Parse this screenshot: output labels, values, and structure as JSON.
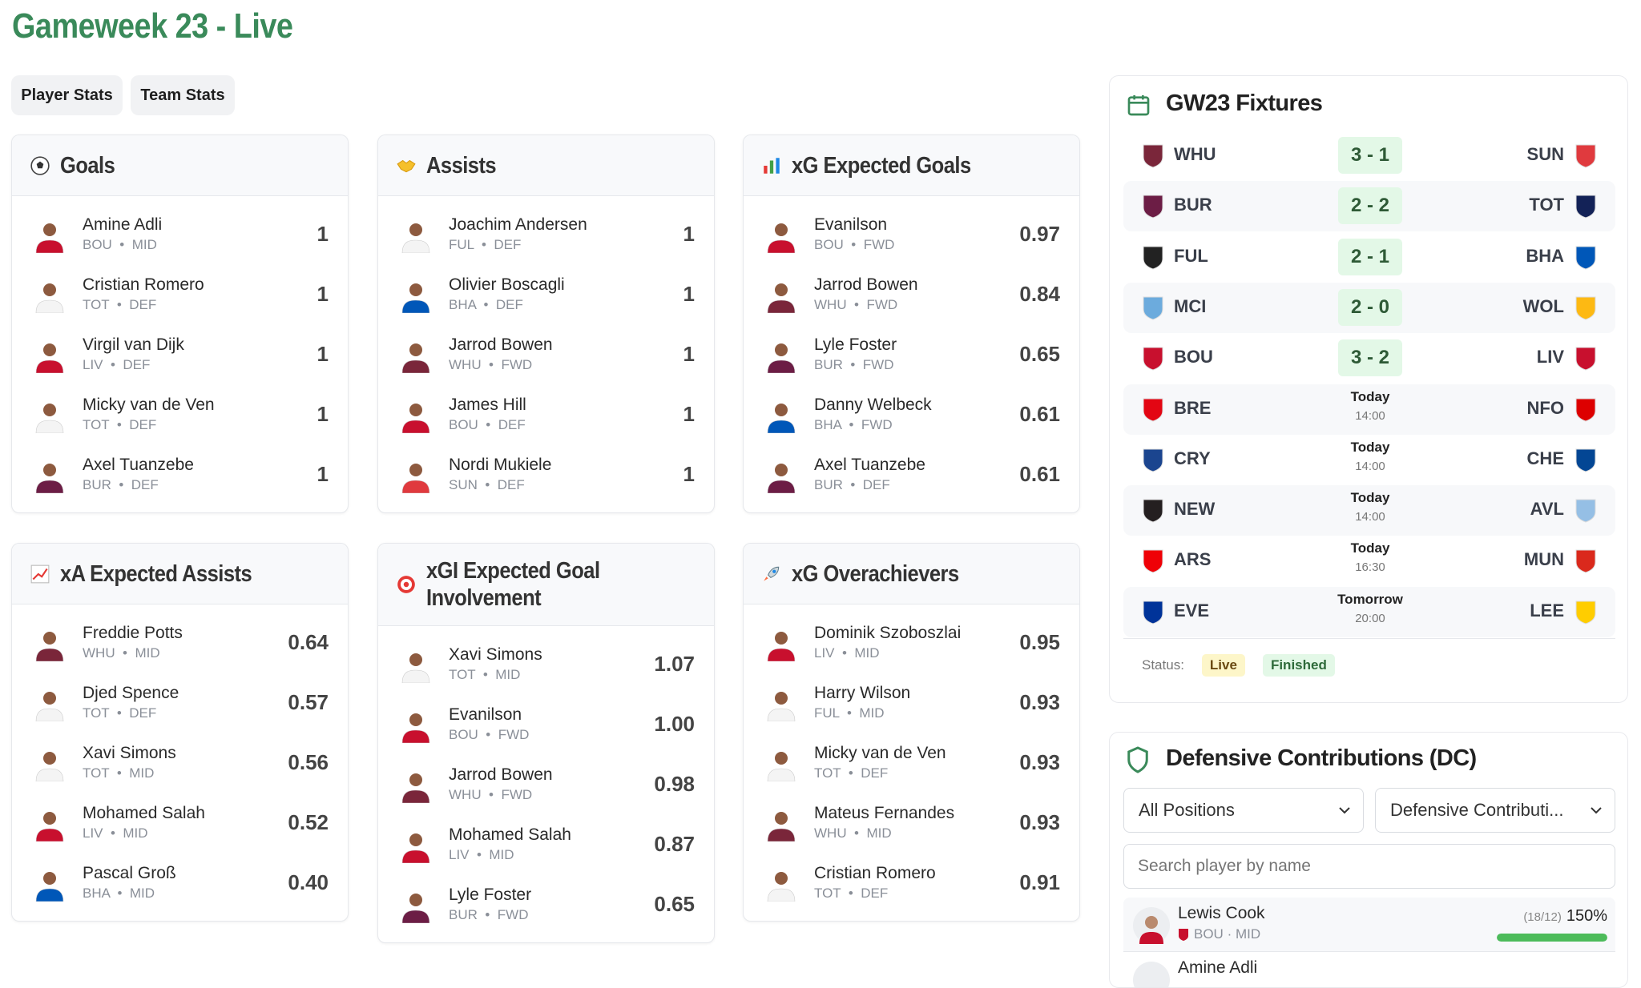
{
  "page": {
    "title": "Gameweek 23 - Live"
  },
  "tabs": [
    {
      "label": "Player Stats"
    },
    {
      "label": "Team Stats"
    }
  ],
  "team_colors": {
    "BOU": "#c8102e",
    "TOT": "#f4f4f4",
    "LIV": "#c8102e",
    "BUR": "#6c1d45",
    "FUL": "#f4f4f4",
    "BHA": "#0057b8",
    "WHU": "#7a263a",
    "SUN": "#e03a3e"
  },
  "cards": [
    {
      "title": "Goals",
      "icon": "soccer-ball-icon",
      "rows": [
        {
          "name": "Amine Adli",
          "team": "BOU",
          "pos": "MID",
          "value": "1"
        },
        {
          "name": "Cristian Romero",
          "team": "TOT",
          "pos": "DEF",
          "value": "1"
        },
        {
          "name": "Virgil van Dijk",
          "team": "LIV",
          "pos": "DEF",
          "value": "1"
        },
        {
          "name": "Micky van de Ven",
          "team": "TOT",
          "pos": "DEF",
          "value": "1"
        },
        {
          "name": "Axel Tuanzebe",
          "team": "BUR",
          "pos": "DEF",
          "value": "1"
        }
      ]
    },
    {
      "title": "Assists",
      "icon": "handshake-icon",
      "rows": [
        {
          "name": "Joachim Andersen",
          "team": "FUL",
          "pos": "DEF",
          "value": "1"
        },
        {
          "name": "Olivier Boscagli",
          "team": "BHA",
          "pos": "DEF",
          "value": "1"
        },
        {
          "name": "Jarrod Bowen",
          "team": "WHU",
          "pos": "FWD",
          "value": "1"
        },
        {
          "name": "James Hill",
          "team": "BOU",
          "pos": "DEF",
          "value": "1"
        },
        {
          "name": "Nordi Mukiele",
          "team": "SUN",
          "pos": "DEF",
          "value": "1"
        }
      ]
    },
    {
      "title": "xG Expected Goals",
      "icon": "bar-chart-icon",
      "rows": [
        {
          "name": "Evanilson",
          "team": "BOU",
          "pos": "FWD",
          "value": "0.97"
        },
        {
          "name": "Jarrod Bowen",
          "team": "WHU",
          "pos": "FWD",
          "value": "0.84"
        },
        {
          "name": "Lyle Foster",
          "team": "BUR",
          "pos": "FWD",
          "value": "0.65"
        },
        {
          "name": "Danny Welbeck",
          "team": "BHA",
          "pos": "FWD",
          "value": "0.61"
        },
        {
          "name": "Axel Tuanzebe",
          "team": "BUR",
          "pos": "DEF",
          "value": "0.61"
        }
      ]
    },
    {
      "title": "xA Expected Assists",
      "icon": "trend-chart-icon",
      "rows": [
        {
          "name": "Freddie Potts",
          "team": "WHU",
          "pos": "MID",
          "value": "0.64"
        },
        {
          "name": "Djed Spence",
          "team": "TOT",
          "pos": "DEF",
          "value": "0.57"
        },
        {
          "name": "Xavi Simons",
          "team": "TOT",
          "pos": "MID",
          "value": "0.56"
        },
        {
          "name": "Mohamed Salah",
          "team": "LIV",
          "pos": "MID",
          "value": "0.52"
        },
        {
          "name": "Pascal Groß",
          "team": "BHA",
          "pos": "MID",
          "value": "0.40"
        }
      ]
    },
    {
      "title": "xGI Expected Goal Involvement",
      "icon": "target-icon",
      "rows": [
        {
          "name": "Xavi Simons",
          "team": "TOT",
          "pos": "MID",
          "value": "1.07"
        },
        {
          "name": "Evanilson",
          "team": "BOU",
          "pos": "FWD",
          "value": "1.00"
        },
        {
          "name": "Jarrod Bowen",
          "team": "WHU",
          "pos": "FWD",
          "value": "0.98"
        },
        {
          "name": "Mohamed Salah",
          "team": "LIV",
          "pos": "MID",
          "value": "0.87"
        },
        {
          "name": "Lyle Foster",
          "team": "BUR",
          "pos": "FWD",
          "value": "0.65"
        }
      ]
    },
    {
      "title": "xG Overachievers",
      "icon": "rocket-icon",
      "rows": [
        {
          "name": "Dominik Szoboszlai",
          "team": "LIV",
          "pos": "MID",
          "value": "0.95"
        },
        {
          "name": "Harry Wilson",
          "team": "FUL",
          "pos": "MID",
          "value": "0.93"
        },
        {
          "name": "Micky van de Ven",
          "team": "TOT",
          "pos": "DEF",
          "value": "0.93"
        },
        {
          "name": "Mateus Fernandes",
          "team": "WHU",
          "pos": "MID",
          "value": "0.93"
        },
        {
          "name": "Cristian Romero",
          "team": "TOT",
          "pos": "DEF",
          "value": "0.91"
        }
      ]
    }
  ],
  "fixtures": {
    "title": "GW23 Fixtures",
    "accent": "#3a8a5a",
    "crest_colors": {
      "WHU": "#7a263a",
      "SUN": "#e03a3e",
      "BUR": "#6c1d45",
      "TOT": "#132257",
      "FUL": "#222222",
      "BHA": "#0057b8",
      "MCI": "#6cabdd",
      "WOL": "#fdb913",
      "BOU": "#c8102e",
      "LIV": "#c8102e",
      "BRE": "#e30613",
      "NFO": "#dd0000",
      "CRY": "#1b458f",
      "CHE": "#034694",
      "NEW": "#241f20",
      "AVL": "#95bfe5",
      "ARS": "#ef0107",
      "MUN": "#da291c",
      "EVE": "#003399",
      "LEE": "#ffcd00"
    },
    "matches": [
      {
        "home": "WHU",
        "away": "SUN",
        "score": "3 - 1"
      },
      {
        "home": "BUR",
        "away": "TOT",
        "score": "2 - 2"
      },
      {
        "home": "FUL",
        "away": "BHA",
        "score": "2 - 1"
      },
      {
        "home": "MCI",
        "away": "WOL",
        "score": "2 - 0"
      },
      {
        "home": "BOU",
        "away": "LIV",
        "score": "3 - 2"
      },
      {
        "home": "BRE",
        "away": "NFO",
        "day": "Today",
        "time": "14:00"
      },
      {
        "home": "CRY",
        "away": "CHE",
        "day": "Today",
        "time": "14:00"
      },
      {
        "home": "NEW",
        "away": "AVL",
        "day": "Today",
        "time": "14:00"
      },
      {
        "home": "ARS",
        "away": "MUN",
        "day": "Today",
        "time": "16:30"
      },
      {
        "home": "EVE",
        "away": "LEE",
        "day": "Tomorrow",
        "time": "20:00"
      }
    ],
    "status_label": "Status:",
    "live_label": "Live",
    "finished_label": "Finished",
    "live_color": "#fdf6c9",
    "finished_color": "#e3f8e7"
  },
  "dc": {
    "title": "Defensive Contributions (DC)",
    "position_select": "All Positions",
    "metric_select": "Defensive Contributi...",
    "search_placeholder": "Search player by name",
    "players": [
      {
        "name": "Lewis Cook",
        "team": "BOU",
        "pos": "MID",
        "ratio": "(18/12)",
        "percent": "150%",
        "progress": 100,
        "bar_color": "#4cbb5a"
      },
      {
        "name": "Amine Adli"
      }
    ]
  }
}
